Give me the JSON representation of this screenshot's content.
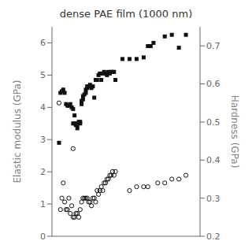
{
  "chart_data": {
    "type": "scatter",
    "title": "dense PAE film (1000 nm)",
    "ylabel": "Elastic modulus (GPa)",
    "y2label": "Hardness (GPa)",
    "xlim": [
      0,
      105
    ],
    "xticks": [],
    "ylim": [
      0,
      6.5
    ],
    "yticks": [
      0,
      1,
      2,
      3,
      4,
      5,
      6
    ],
    "y2lim": [
      0.2,
      0.75
    ],
    "y2ticks": [
      0.2,
      0.3,
      0.4,
      0.5,
      0.6,
      0.7
    ],
    "tick_labels": "y",
    "grid": false,
    "series": [
      {
        "color": "#111111",
        "marker": "square",
        "x": [
          5,
          6,
          7,
          8,
          9,
          10,
          11,
          12,
          13,
          14,
          15,
          15,
          16,
          16,
          17,
          17,
          18,
          18,
          19,
          20,
          20,
          21,
          21,
          22,
          22,
          23,
          24,
          24,
          25,
          25,
          26,
          27,
          28,
          29,
          30,
          31,
          32,
          33,
          34,
          35,
          36,
          37,
          38,
          39,
          40,
          41,
          42,
          43,
          44,
          45,
          50,
          55,
          60,
          65,
          68,
          70,
          72,
          80,
          85,
          90,
          95
        ],
        "values": [
          2.9,
          4.45,
          4.5,
          4.55,
          4.45,
          4.1,
          4.05,
          4.05,
          4.1,
          4.0,
          3.95,
          3.5,
          3.75,
          3.5,
          3.5,
          3.45,
          3.45,
          3.35,
          3.55,
          3.55,
          3.5,
          4.1,
          4.2,
          4.25,
          4.35,
          4.4,
          4.45,
          4.55,
          4.6,
          4.65,
          4.65,
          4.7,
          4.6,
          4.65,
          4.3,
          4.85,
          4.85,
          5.0,
          5.05,
          4.85,
          5.05,
          5.1,
          5.05,
          5.0,
          5.1,
          5.05,
          5.1,
          5.1,
          5.1,
          4.85,
          5.5,
          5.5,
          5.5,
          5.55,
          5.9,
          5.9,
          6.0,
          6.2,
          6.25,
          5.85,
          6.25
        ]
      },
      {
        "color": "#111111",
        "marker": "open_circle",
        "axis": "y2",
        "x": [
          5,
          6,
          7,
          8,
          9,
          10,
          11,
          12,
          13,
          14,
          15,
          15,
          16,
          17,
          18,
          19,
          20,
          21,
          22,
          23,
          24,
          25,
          26,
          27,
          28,
          29,
          30,
          31,
          32,
          33,
          34,
          35,
          36,
          37,
          38,
          39,
          40,
          41,
          42,
          43,
          44,
          45,
          55,
          60,
          65,
          68,
          75,
          80,
          85,
          90,
          95
        ],
        "values": [
          0.55,
          0.27,
          0.3,
          0.34,
          0.29,
          0.27,
          0.27,
          0.3,
          0.26,
          0.28,
          0.25,
          0.43,
          0.25,
          0.26,
          0.26,
          0.25,
          0.27,
          0.29,
          0.3,
          0.3,
          0.3,
          0.3,
          0.29,
          0.29,
          0.28,
          0.3,
          0.3,
          0.29,
          0.32,
          0.31,
          0.32,
          0.33,
          0.32,
          0.34,
          0.34,
          0.35,
          0.35,
          0.36,
          0.36,
          0.37,
          0.36,
          0.37,
          0.32,
          0.33,
          0.33,
          0.33,
          0.34,
          0.34,
          0.35,
          0.35,
          0.36
        ]
      }
    ]
  }
}
